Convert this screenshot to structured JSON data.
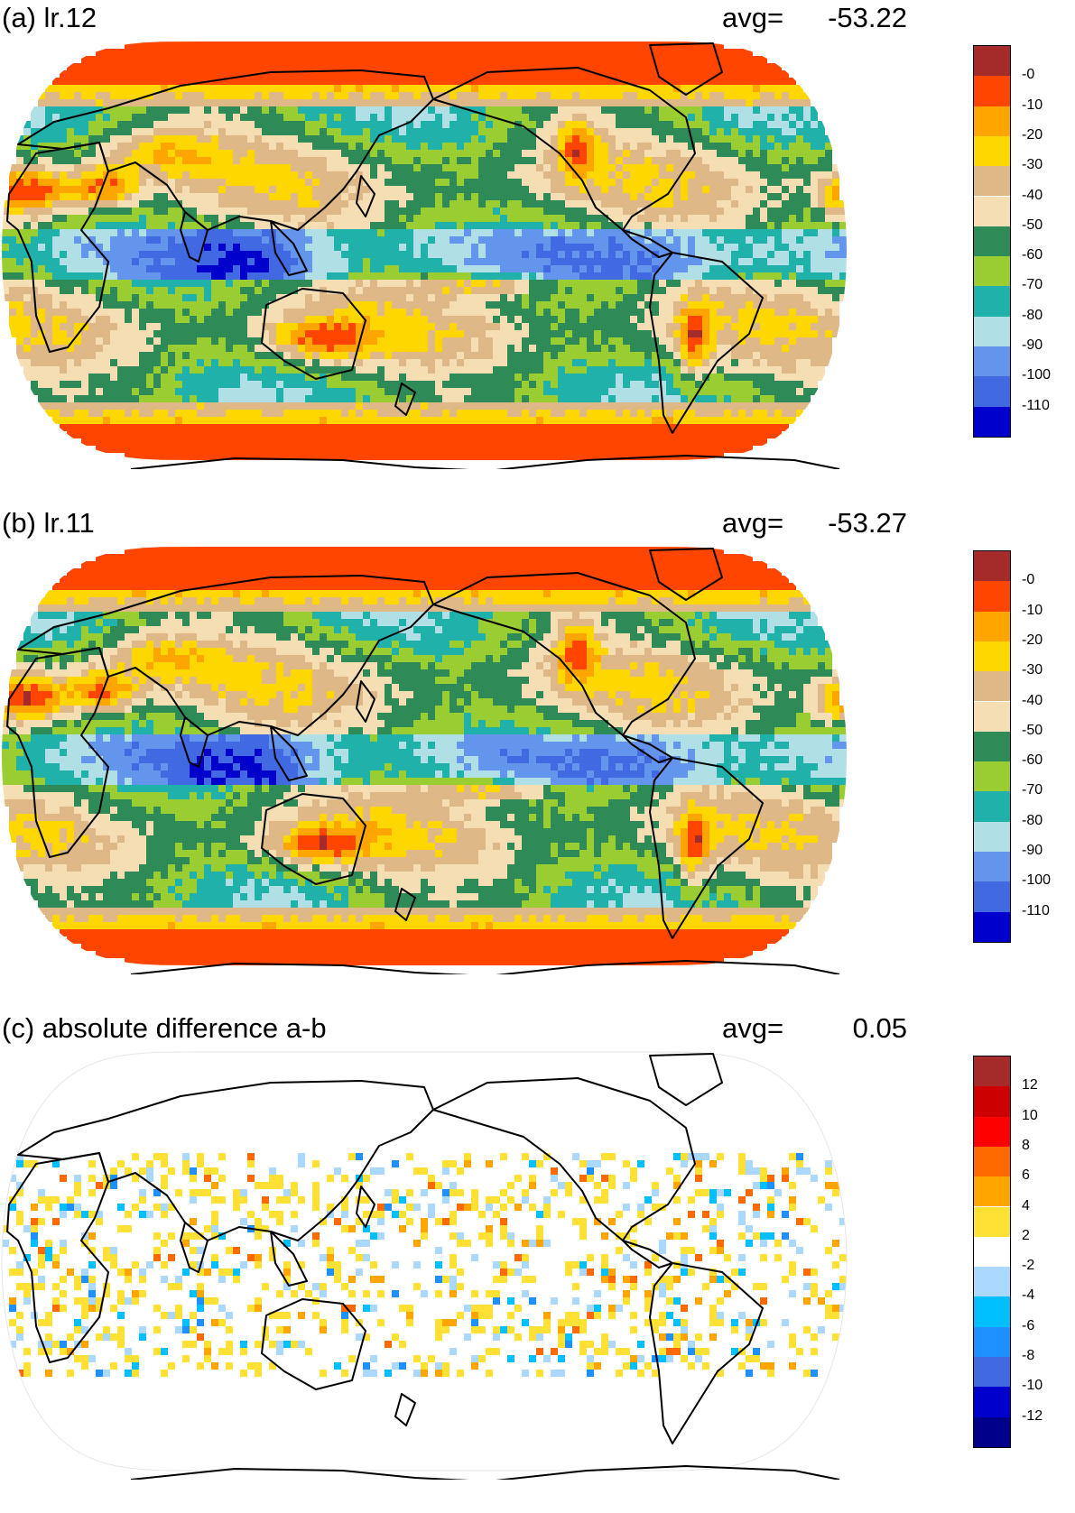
{
  "panels": [
    {
      "id": "a",
      "title": "(a) lr.12",
      "avg_label": "avg=",
      "avg_value": "-53.22",
      "projection": "Robinson",
      "colorbar": {
        "colors": [
          "#A52A2A",
          "#FF4500",
          "#FFA500",
          "#FFD700",
          "#DEB887",
          "#F5DEB3",
          "#2E8B57",
          "#9ACD32",
          "#20B2AA",
          "#B0E0E6",
          "#6495ED",
          "#4169E1",
          "#0000CD"
        ],
        "labels": [
          "-0",
          "-10",
          "-20",
          "-30",
          "-40",
          "-50",
          "-60",
          "-70",
          "-80",
          "-90",
          "-100",
          "-110"
        ]
      }
    },
    {
      "id": "b",
      "title": "(b) lr.11",
      "avg_label": "avg=",
      "avg_value": "-53.27",
      "projection": "Robinson",
      "colorbar": {
        "colors": [
          "#A52A2A",
          "#FF4500",
          "#FFA500",
          "#FFD700",
          "#DEB887",
          "#F5DEB3",
          "#2E8B57",
          "#9ACD32",
          "#20B2AA",
          "#B0E0E6",
          "#6495ED",
          "#4169E1",
          "#0000CD"
        ],
        "labels": [
          "-0",
          "-10",
          "-20",
          "-30",
          "-40",
          "-50",
          "-60",
          "-70",
          "-80",
          "-90",
          "-100",
          "-110"
        ]
      }
    },
    {
      "id": "c",
      "title": "(c) absolute difference a-b",
      "avg_label": "avg=",
      "avg_value": "0.05",
      "projection": "Robinson",
      "colorbar": {
        "colors": [
          "#A52A2A",
          "#CD0000",
          "#FF0000",
          "#FF6A00",
          "#FFA500",
          "#FFE135",
          "#FFFFFF",
          "#AAD8FF",
          "#00BFFF",
          "#1E90FF",
          "#4169E1",
          "#0000CD",
          "#00008B"
        ],
        "labels": [
          "12",
          "10",
          "8",
          "6",
          "4",
          "2",
          "-2",
          "-4",
          "-6",
          "-8",
          "-10",
          "-12"
        ]
      }
    }
  ]
}
